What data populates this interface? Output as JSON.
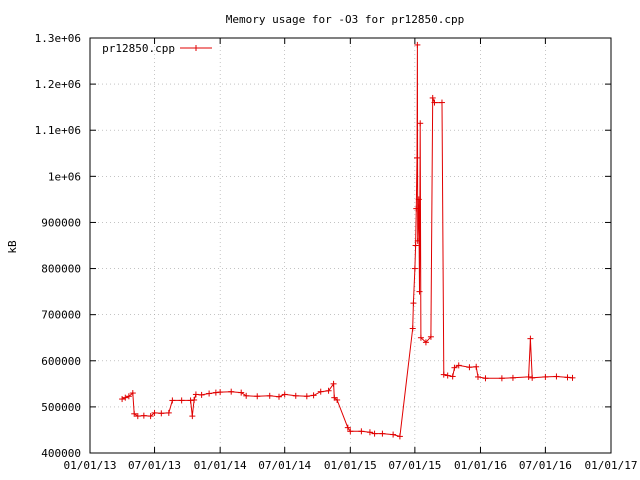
{
  "chart_data": {
    "type": "line",
    "title": "Memory usage for -O3 for pr12850.cpp",
    "xlabel": "",
    "ylabel": "kB",
    "x_axis": "date",
    "x_ticks": [
      "01/01/13",
      "07/01/13",
      "01/01/14",
      "07/01/14",
      "01/01/15",
      "07/01/15",
      "01/01/16",
      "07/01/16",
      "01/01/17"
    ],
    "y_ticks": [
      "400000",
      "500000",
      "600000",
      "700000",
      "800000",
      "900000",
      "1e+06",
      "1.1e+06",
      "1.2e+06",
      "1.3e+06"
    ],
    "xlim": [
      "2013-01-01",
      "2017-01-01"
    ],
    "ylim": [
      400000,
      1300000
    ],
    "grid": true,
    "legend_position": "top-left",
    "colors": {
      "series": "#e00000",
      "grid": "#a0a0a0",
      "axis": "#000000"
    },
    "series": [
      {
        "name": "pr12850.cpp",
        "points": [
          [
            "2013-04-01",
            517000
          ],
          [
            "2013-04-10",
            520000
          ],
          [
            "2013-04-20",
            523000
          ],
          [
            "2013-05-01",
            530000
          ],
          [
            "2013-05-05",
            485000
          ],
          [
            "2013-05-15",
            480000
          ],
          [
            "2013-06-01",
            481000
          ],
          [
            "2013-06-20",
            480000
          ],
          [
            "2013-07-01",
            487000
          ],
          [
            "2013-07-20",
            486000
          ],
          [
            "2013-08-10",
            487000
          ],
          [
            "2013-08-20",
            514000
          ],
          [
            "2013-09-15",
            514000
          ],
          [
            "2013-10-10",
            514000
          ],
          [
            "2013-10-15",
            480000
          ],
          [
            "2013-10-20",
            515000
          ],
          [
            "2013-10-25",
            527000
          ],
          [
            "2013-11-10",
            526000
          ],
          [
            "2013-12-01",
            529000
          ],
          [
            "2013-12-20",
            531000
          ],
          [
            "2014-01-01",
            532000
          ],
          [
            "2014-02-01",
            533000
          ],
          [
            "2014-03-01",
            531000
          ],
          [
            "2014-03-15",
            524000
          ],
          [
            "2014-04-15",
            523000
          ],
          [
            "2014-05-20",
            524000
          ],
          [
            "2014-06-15",
            522000
          ],
          [
            "2014-07-01",
            527000
          ],
          [
            "2014-08-01",
            524000
          ],
          [
            "2014-09-01",
            523000
          ],
          [
            "2014-09-20",
            525000
          ],
          [
            "2014-10-10",
            533000
          ],
          [
            "2014-11-01",
            535000
          ],
          [
            "2014-11-15",
            550000
          ],
          [
            "2014-11-17",
            520000
          ],
          [
            "2014-11-25",
            515000
          ],
          [
            "2014-12-25",
            455000
          ],
          [
            "2015-01-01",
            447000
          ],
          [
            "2015-02-01",
            447000
          ],
          [
            "2015-02-25",
            445000
          ],
          [
            "2015-03-10",
            442000
          ],
          [
            "2015-04-01",
            442000
          ],
          [
            "2015-05-01",
            440000
          ],
          [
            "2015-05-20",
            436000
          ],
          [
            "2015-06-25",
            670000
          ],
          [
            "2015-06-27",
            725000
          ],
          [
            "2015-07-01",
            800000
          ],
          [
            "2015-07-03",
            850000
          ],
          [
            "2015-07-05",
            930000
          ],
          [
            "2015-07-07",
            1040000
          ],
          [
            "2015-07-08",
            1285000
          ],
          [
            "2015-07-09",
            860000
          ],
          [
            "2015-07-12",
            950000
          ],
          [
            "2015-07-14",
            750000
          ],
          [
            "2015-07-16",
            1115000
          ],
          [
            "2015-07-18",
            650000
          ],
          [
            "2015-08-01",
            640000
          ],
          [
            "2015-08-15",
            652000
          ],
          [
            "2015-08-20",
            1170000
          ],
          [
            "2015-08-25",
            1160000
          ],
          [
            "2015-09-15",
            1160000
          ],
          [
            "2015-09-20",
            570000
          ],
          [
            "2015-10-01",
            568000
          ],
          [
            "2015-10-15",
            566000
          ],
          [
            "2015-10-20",
            585000
          ],
          [
            "2015-11-01",
            590000
          ],
          [
            "2015-12-01",
            586000
          ],
          [
            "2015-12-20",
            587000
          ],
          [
            "2015-12-25",
            565000
          ],
          [
            "2016-01-15",
            562000
          ],
          [
            "2016-03-01",
            562000
          ],
          [
            "2016-04-01",
            563000
          ],
          [
            "2016-05-15",
            565000
          ],
          [
            "2016-05-20",
            648000
          ],
          [
            "2016-05-25",
            563000
          ],
          [
            "2016-07-01",
            565000
          ],
          [
            "2016-08-01",
            566000
          ],
          [
            "2016-09-01",
            564000
          ],
          [
            "2016-09-15",
            563000
          ]
        ]
      }
    ]
  }
}
